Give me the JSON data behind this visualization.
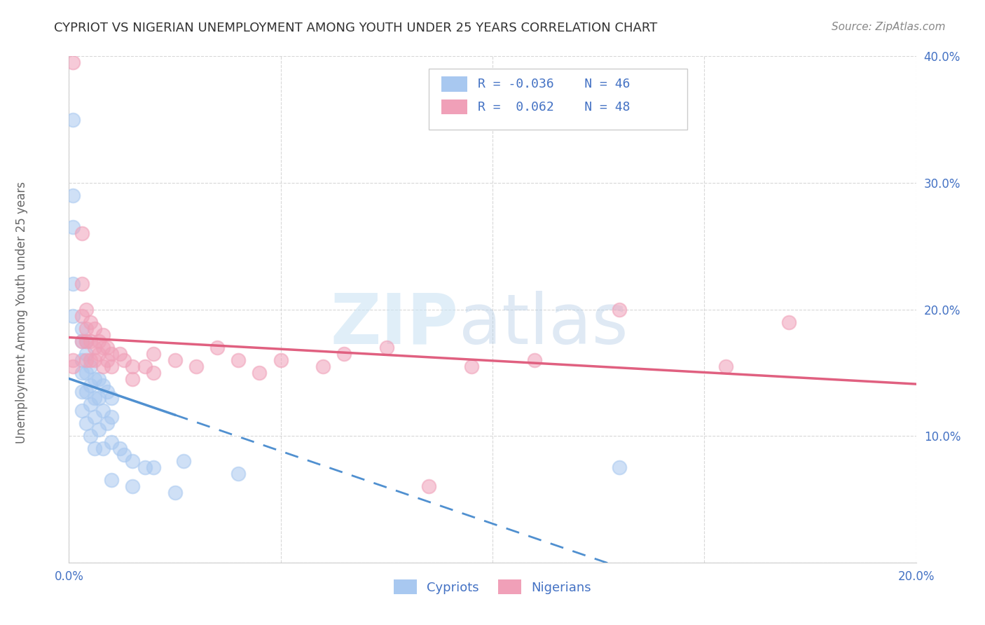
{
  "title": "CYPRIOT VS NIGERIAN UNEMPLOYMENT AMONG YOUTH UNDER 25 YEARS CORRELATION CHART",
  "source": "Source: ZipAtlas.com",
  "ylabel": "Unemployment Among Youth under 25 years",
  "xlim": [
    0.0,
    0.2
  ],
  "ylim": [
    0.0,
    0.4
  ],
  "xticks": [
    0.0,
    0.05,
    0.1,
    0.15,
    0.2
  ],
  "yticks": [
    0.0,
    0.1,
    0.2,
    0.3,
    0.4
  ],
  "color_cypriot": "#a8c8f0",
  "color_nigerian": "#f0a0b8",
  "color_line_cypriot": "#5090d0",
  "color_line_nigerian": "#e06080",
  "background_color": "#ffffff",
  "grid_color": "#d8d8d8",
  "cypriot_x": [
    0.001,
    0.001,
    0.001,
    0.001,
    0.001,
    0.003,
    0.003,
    0.003,
    0.003,
    0.003,
    0.003,
    0.004,
    0.004,
    0.004,
    0.004,
    0.004,
    0.005,
    0.005,
    0.005,
    0.005,
    0.006,
    0.006,
    0.006,
    0.006,
    0.007,
    0.007,
    0.007,
    0.008,
    0.008,
    0.008,
    0.009,
    0.009,
    0.01,
    0.01,
    0.01,
    0.01,
    0.012,
    0.013,
    0.015,
    0.015,
    0.018,
    0.02,
    0.025,
    0.027,
    0.04,
    0.13
  ],
  "cypriot_y": [
    0.35,
    0.29,
    0.265,
    0.22,
    0.195,
    0.185,
    0.175,
    0.16,
    0.15,
    0.135,
    0.12,
    0.175,
    0.165,
    0.15,
    0.135,
    0.11,
    0.155,
    0.14,
    0.125,
    0.1,
    0.145,
    0.13,
    0.115,
    0.09,
    0.145,
    0.13,
    0.105,
    0.14,
    0.12,
    0.09,
    0.135,
    0.11,
    0.13,
    0.115,
    0.095,
    0.065,
    0.09,
    0.085,
    0.08,
    0.06,
    0.075,
    0.075,
    0.055,
    0.08,
    0.07,
    0.075
  ],
  "nigerian_x": [
    0.001,
    0.001,
    0.001,
    0.003,
    0.003,
    0.003,
    0.003,
    0.004,
    0.004,
    0.004,
    0.004,
    0.005,
    0.005,
    0.005,
    0.006,
    0.006,
    0.006,
    0.007,
    0.007,
    0.008,
    0.008,
    0.008,
    0.009,
    0.009,
    0.01,
    0.01,
    0.012,
    0.013,
    0.015,
    0.015,
    0.018,
    0.02,
    0.02,
    0.025,
    0.03,
    0.035,
    0.04,
    0.045,
    0.05,
    0.06,
    0.065,
    0.075,
    0.085,
    0.095,
    0.11,
    0.13,
    0.155,
    0.17
  ],
  "nigerian_y": [
    0.16,
    0.155,
    0.395,
    0.26,
    0.22,
    0.195,
    0.175,
    0.2,
    0.185,
    0.175,
    0.16,
    0.19,
    0.175,
    0.16,
    0.185,
    0.17,
    0.16,
    0.175,
    0.165,
    0.18,
    0.17,
    0.155,
    0.17,
    0.16,
    0.165,
    0.155,
    0.165,
    0.16,
    0.155,
    0.145,
    0.155,
    0.165,
    0.15,
    0.16,
    0.155,
    0.17,
    0.16,
    0.15,
    0.16,
    0.155,
    0.165,
    0.17,
    0.06,
    0.155,
    0.16,
    0.2,
    0.155,
    0.19
  ]
}
